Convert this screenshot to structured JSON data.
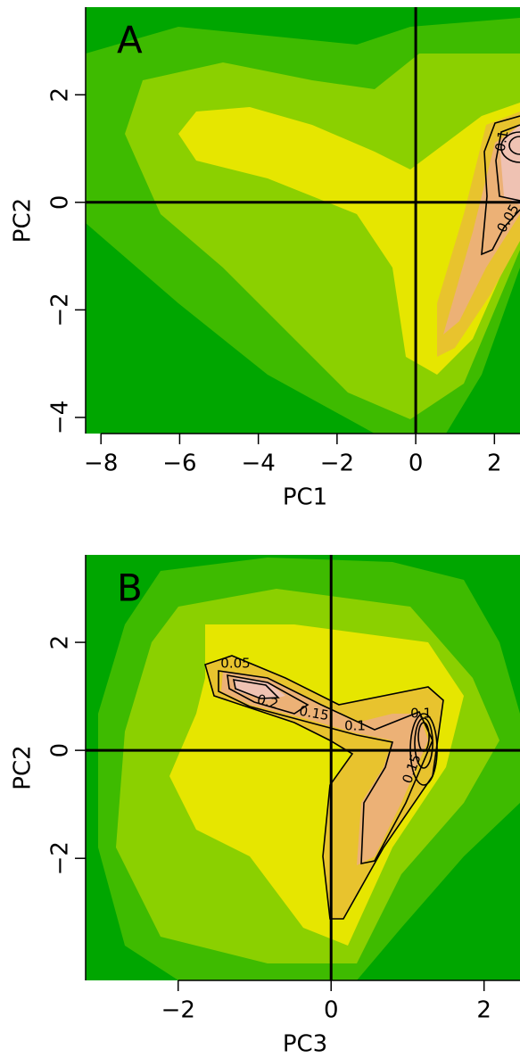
{
  "chart_data": [
    {
      "type": "contour",
      "panel_label": "A",
      "x_label": "PC1",
      "y_label": "PC2",
      "xlim": [
        -8.39,
        2.65
      ],
      "ylim": [
        -4.3,
        3.63
      ],
      "xticks": [
        {
          "value": -8,
          "label": "−8"
        },
        {
          "value": -6,
          "label": "−6"
        },
        {
          "value": -4,
          "label": "−4"
        },
        {
          "value": -2,
          "label": "−2"
        },
        0,
        2
      ],
      "yticks": [
        {
          "value": -4,
          "label": "−4"
        },
        {
          "value": -2,
          "label": "−2"
        },
        0,
        2
      ],
      "reference_lines": {
        "x": 0,
        "y": 0
      },
      "colors": [
        "#00a600",
        "#3ebb00",
        "#8bd000",
        "#e6e600",
        "#e8c32e",
        "#ecb176",
        "#efc2b3"
      ],
      "contour_labels": [
        0.1,
        0.05
      ]
    },
    {
      "type": "contour",
      "panel_label": "B",
      "x_label": "PC3",
      "y_label": "PC2",
      "xlim": [
        -3.21,
        2.47
      ],
      "ylim": [
        -4.26,
        3.62
      ],
      "xticks": [
        {
          "value": -2,
          "label": "−2"
        },
        0,
        2
      ],
      "yticks": [
        {
          "value": -2,
          "label": "−2"
        },
        0,
        2
      ],
      "reference_lines": {
        "x": 0,
        "y": 0
      },
      "colors": [
        "#00a600",
        "#3ebb00",
        "#8bd000",
        "#e6e600",
        "#e8c32e",
        "#ecb176",
        "#efc2b3"
      ],
      "contour_labels": [
        0.05,
        0.2,
        0.15,
        0.1,
        0.1,
        0.15
      ]
    }
  ]
}
